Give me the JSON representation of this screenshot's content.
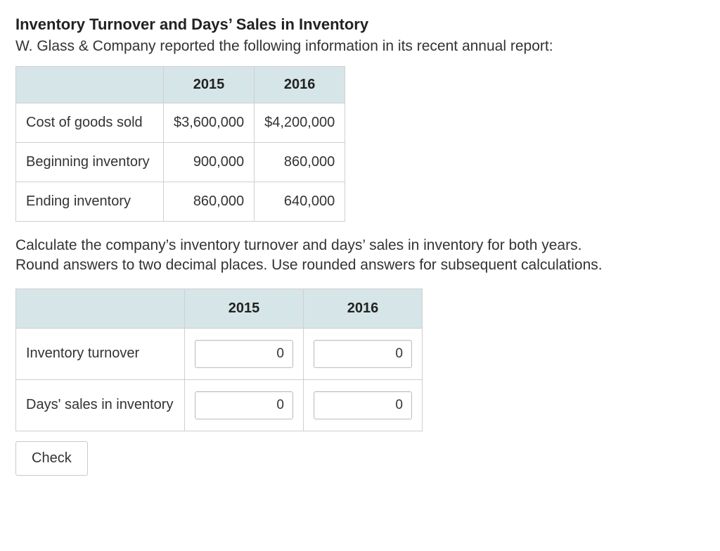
{
  "heading": "Inventory Turnover and Days’ Sales in Inventory",
  "intro": "W. Glass & Company reported the following information in its recent annual report:",
  "data_table": {
    "columns": [
      "2015",
      "2016"
    ],
    "rows": [
      {
        "label": "Cost of goods sold",
        "v2015": "$3,600,000",
        "v2016": "$4,200,000"
      },
      {
        "label": "Beginning inventory",
        "v2015": "900,000",
        "v2016": "860,000"
      },
      {
        "label": "Ending inventory",
        "v2015": "860,000",
        "v2016": "640,000"
      }
    ]
  },
  "instructions_line1": "Calculate the company’s inventory turnover and days’ sales in inventory for both years.",
  "instructions_line2": "Round answers to two decimal places. Use rounded answers for subsequent calculations.",
  "answer_table": {
    "columns": [
      "2015",
      "2016"
    ],
    "rows": [
      {
        "label": "Inventory turnover",
        "v2015": "0",
        "v2016": "0"
      },
      {
        "label": "Days' sales in inventory",
        "v2015": "0",
        "v2016": "0"
      }
    ]
  },
  "check_button_label": "Check",
  "colors": {
    "header_bg": "#d6e5e8",
    "border": "#cfcfcf",
    "text": "#333333"
  }
}
